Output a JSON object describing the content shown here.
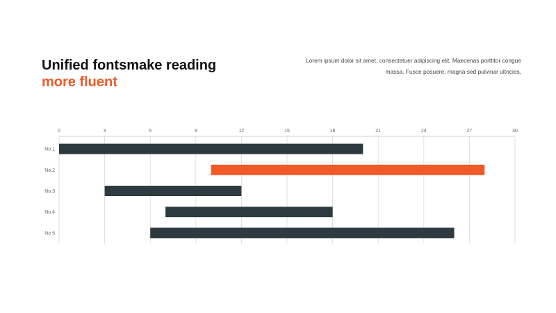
{
  "header": {
    "title_line1": "Unified fontsmake reading",
    "title_line2": "more fluent",
    "accent_color": "#f05a28",
    "description": "Lorem ipsum dolor sit amet, consectetuer adipiscing elit. Maecenas porttitor congue massa. Fusce posuere, magna sed pulvinar ultricies,"
  },
  "chart_data": {
    "type": "bar",
    "orientation": "horizontal",
    "stacked_range": true,
    "categories": [
      "No.1",
      "No.2",
      "No.3",
      "No.4",
      "No.5"
    ],
    "series": [
      {
        "starts": [
          0,
          10,
          3,
          7,
          6
        ],
        "ends": [
          20,
          28,
          12,
          18,
          26
        ]
      }
    ],
    "xlim": [
      0,
      30
    ],
    "xticks": [
      0,
      3,
      6,
      9,
      12,
      15,
      18,
      21,
      24,
      27,
      30
    ],
    "xaxis_position": "top",
    "grid": true,
    "bar_color": "#2d3b40",
    "highlight_color": "#f05a28",
    "highlight_index": 1,
    "title": "",
    "xlabel": "",
    "ylabel": ""
  }
}
